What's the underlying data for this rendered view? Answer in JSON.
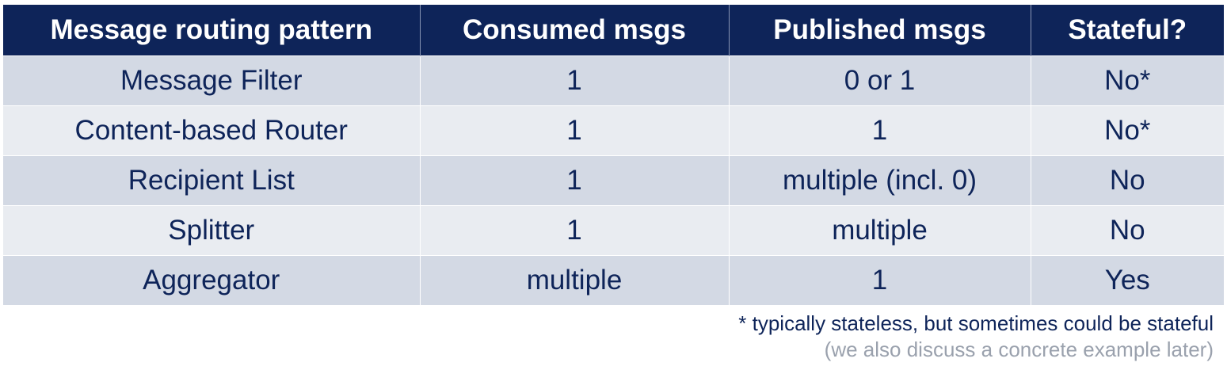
{
  "table": {
    "headers": [
      "Message routing pattern",
      "Consumed msgs",
      "Published msgs",
      "Stateful?"
    ],
    "rows": [
      [
        "Message Filter",
        "1",
        "0 or 1",
        "No*"
      ],
      [
        "Content-based Router",
        "1",
        "1",
        "No*"
      ],
      [
        "Recipient List",
        "1",
        "multiple (incl. 0)",
        "No"
      ],
      [
        "Splitter",
        "1",
        "multiple",
        "No"
      ],
      [
        "Aggregator",
        "multiple",
        "1",
        "Yes"
      ]
    ]
  },
  "footnotes": {
    "primary": "* typically stateless, but sometimes could be stateful",
    "secondary": "(we also discuss a concrete example later)"
  },
  "colors": {
    "header_bg": "#0e2459",
    "row_odd_bg": "#d3d9e4",
    "row_even_bg": "#e9ecf1",
    "text": "#0e2459",
    "muted_text": "#9aa1ad"
  }
}
